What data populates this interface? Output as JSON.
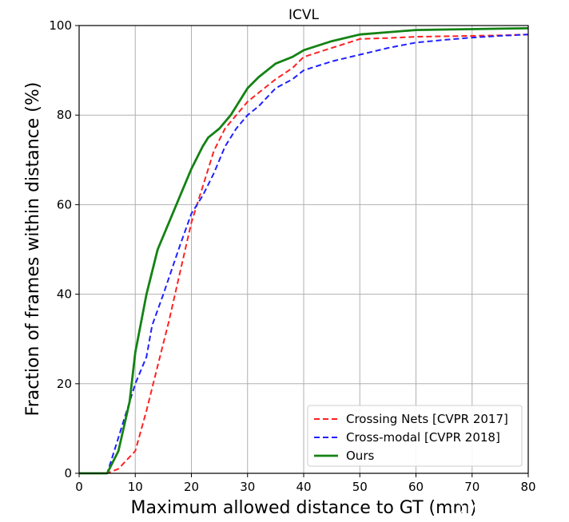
{
  "chart_data": {
    "type": "line",
    "title": "ICVL",
    "xlabel": "Maximum allowed distance to GT (mm)",
    "ylabel": "Fraction of frames within distance (%)",
    "xlim": [
      0,
      80
    ],
    "ylim": [
      0,
      100
    ],
    "xticks": [
      0,
      10,
      20,
      30,
      40,
      50,
      60,
      70,
      80
    ],
    "yticks": [
      0,
      20,
      40,
      60,
      80,
      100
    ],
    "grid": true,
    "legend_position": "lower-right",
    "series": [
      {
        "name": "Crossing Nets [CVPR 2017]",
        "color": "#ff2020",
        "style": "dashed",
        "x": [
          0,
          5,
          7,
          10,
          12,
          14,
          16,
          18,
          20,
          22,
          24,
          26,
          28,
          30,
          33,
          35,
          38,
          40,
          45,
          50,
          55,
          60,
          65,
          70,
          75,
          80
        ],
        "y": [
          0,
          0,
          1,
          5,
          14,
          24,
          34,
          45,
          56,
          64,
          72,
          77,
          80,
          83,
          86,
          88,
          90.5,
          93,
          95,
          97,
          97.2,
          97.5,
          97.6,
          97.7,
          97.8,
          98
        ]
      },
      {
        "name": "Cross-modal [CVPR 2018]",
        "color": "#2020ff",
        "style": "dashed",
        "x": [
          0,
          5,
          6,
          8,
          10,
          12,
          13,
          15,
          18,
          20,
          22,
          24,
          26,
          28,
          30,
          32,
          35,
          38,
          40,
          45,
          50,
          55,
          60,
          65,
          70,
          75,
          80
        ],
        "y": [
          0,
          0,
          4,
          12,
          20,
          26,
          33,
          40,
          51,
          58,
          62,
          67,
          73,
          77,
          80,
          82,
          86,
          88,
          90,
          92,
          93.5,
          95,
          96.2,
          96.8,
          97.3,
          97.7,
          98
        ]
      },
      {
        "name": "Ours",
        "color": "#148214",
        "style": "solid",
        "x": [
          0,
          5,
          7,
          9,
          10,
          12,
          14,
          16,
          18,
          20,
          22,
          23,
          25,
          27,
          30,
          32,
          35,
          38,
          40,
          45,
          50,
          55,
          60,
          65,
          70,
          75,
          80
        ],
        "y": [
          0,
          0,
          5,
          16,
          27,
          40,
          50,
          56,
          62,
          68,
          73,
          75,
          77,
          80,
          86,
          88.5,
          91.5,
          93,
          94.5,
          96.5,
          98,
          98.5,
          99,
          99.1,
          99.2,
          99.3,
          99.4
        ]
      }
    ]
  },
  "watermark": "MVPRLab"
}
